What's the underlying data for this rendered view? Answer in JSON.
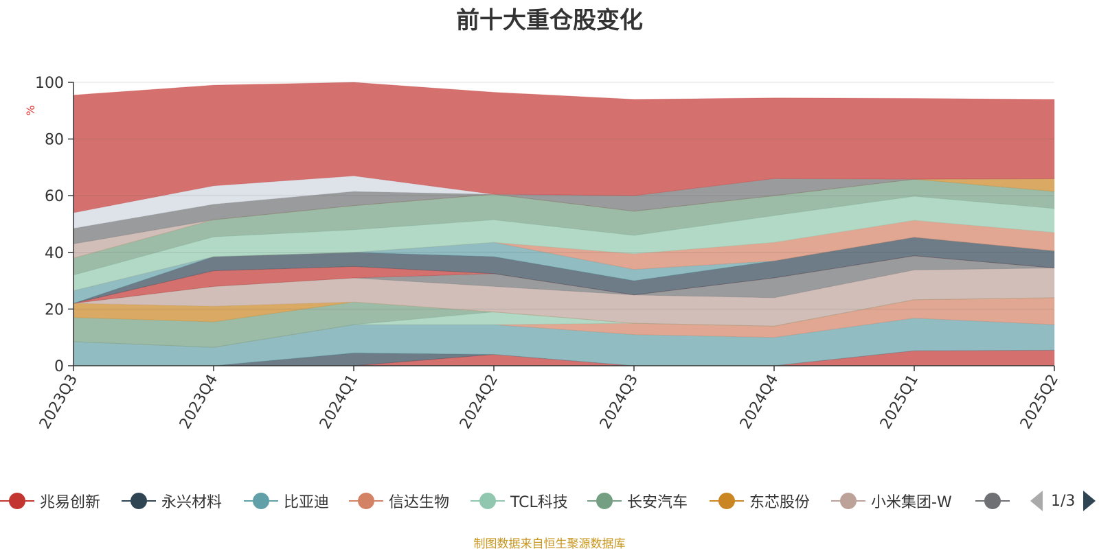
{
  "chart_data": {
    "type": "area",
    "stacked": true,
    "title": "前十大重仓股变化",
    "ylabel": "%",
    "ylim": [
      0,
      100
    ],
    "yticks": [
      0,
      20,
      40,
      60,
      80,
      100
    ],
    "grid": true,
    "categories": [
      "2023Q3",
      "2023Q4",
      "2024Q1",
      "2024Q2",
      "2024Q3",
      "2024Q4",
      "2025Q1",
      "2025Q2"
    ],
    "series": [
      {
        "name": "兆易创新",
        "color": "#c23531",
        "values": [
          0,
          0,
          0,
          4,
          0,
          0,
          5.3,
          5.5
        ]
      },
      {
        "name": "永兴材料",
        "color": "#2f4554",
        "values": [
          0,
          0,
          4.5,
          0,
          0,
          0,
          0,
          0
        ]
      },
      {
        "name": "比亚迪",
        "color": "#61a0a8",
        "values": [
          8.5,
          6.5,
          10,
          10.5,
          11,
          10,
          11.5,
          9
        ]
      },
      {
        "name": "信达生物",
        "color": "#d48265",
        "values": [
          0,
          0,
          0,
          0,
          4,
          4,
          6.5,
          9.5
        ]
      },
      {
        "name": "TCL科技",
        "color": "#91c7ae",
        "values": [
          0,
          0,
          0,
          4.5,
          0,
          0,
          0,
          0
        ]
      },
      {
        "name": "长安汽车",
        "color": "#749f83",
        "values": [
          8.5,
          9,
          8,
          0,
          0,
          0,
          0,
          0
        ]
      },
      {
        "name": "东芯股份",
        "color": "#ca8622",
        "values": [
          5,
          5.5,
          0,
          0,
          0,
          0,
          0,
          0
        ]
      },
      {
        "name": "小米集团-W",
        "color": "#bda29a",
        "values": [
          0,
          7,
          8.5,
          9,
          10,
          10,
          10.5,
          10.5
        ]
      },
      {
        "name": "",
        "color": "#6e7074",
        "values": [
          0,
          0,
          0,
          4.5,
          0,
          7,
          5,
          0
        ]
      },
      {
        "name": "",
        "color": "#c23531",
        "values": [
          0,
          5.5,
          4,
          0,
          0,
          0,
          0,
          0
        ]
      },
      {
        "name": "",
        "color": "#2f4554",
        "values": [
          0,
          5,
          5,
          6,
          5,
          6,
          6.5,
          6
        ]
      },
      {
        "name": "",
        "color": "#61a0a8",
        "values": [
          4.5,
          0,
          0,
          5,
          4,
          0,
          0,
          0
        ]
      },
      {
        "name": "",
        "color": "#d48265",
        "values": [
          0,
          0,
          0,
          0,
          5.5,
          6.5,
          6,
          6.5
        ]
      },
      {
        "name": "",
        "color": "#91c7ae",
        "values": [
          5.5,
          7,
          8,
          8,
          6.5,
          9.5,
          8.5,
          8.5
        ]
      },
      {
        "name": "",
        "color": "#749f83",
        "values": [
          6,
          6,
          8.5,
          9,
          8.5,
          7,
          6,
          6
        ]
      },
      {
        "name": "",
        "color": "#ca8622",
        "values": [
          0,
          0,
          0,
          0,
          0,
          0,
          0,
          4.5
        ]
      },
      {
        "name": "",
        "color": "#bda29a",
        "values": [
          5,
          0,
          0,
          0,
          0,
          0,
          0,
          0
        ]
      },
      {
        "name": "",
        "color": "#6e7074",
        "values": [
          5.5,
          5.5,
          5,
          0,
          5.5,
          6,
          0,
          0
        ]
      },
      {
        "name": "",
        "color": "#d0d6df",
        "values": [
          5.5,
          6.5,
          5.5,
          0,
          0,
          0,
          0,
          0
        ]
      },
      {
        "name": "",
        "color": "#c23531",
        "values": [
          41.5,
          35.5,
          33,
          36,
          34,
          28.5,
          28.5,
          28
        ]
      }
    ]
  },
  "legend": {
    "items": [
      {
        "name": "兆易创新",
        "color": "#c23531"
      },
      {
        "name": "永兴材料",
        "color": "#2f4554"
      },
      {
        "name": "比亚迪",
        "color": "#61a0a8"
      },
      {
        "name": "信达生物",
        "color": "#d48265"
      },
      {
        "name": "TCL科技",
        "color": "#91c7ae"
      },
      {
        "name": "长安汽车",
        "color": "#749f83"
      },
      {
        "name": "东芯股份",
        "color": "#ca8622"
      },
      {
        "name": "小米集团-W",
        "color": "#bda29a"
      },
      {
        "name": "",
        "color": "#6e7074"
      }
    ],
    "page": "1/3"
  },
  "footer": "制图数据来自恒生聚源数据库"
}
